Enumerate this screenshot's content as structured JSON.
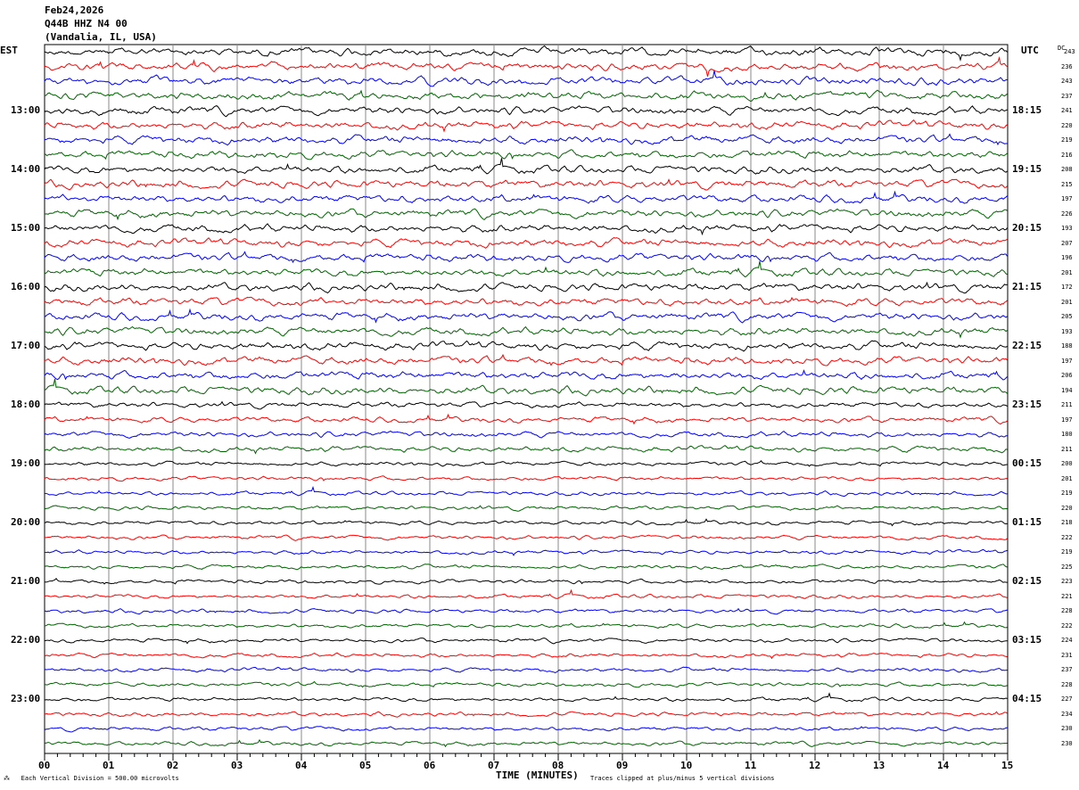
{
  "header": {
    "date": "Feb24,2026",
    "station": "Q44B HHZ N4 00",
    "location": "(Vandalia, IL, USA)"
  },
  "left_axis_label": "EST",
  "right_axis_label": "UTC",
  "dc_label": "DC",
  "chart_data": {
    "type": "line",
    "xlabel": "TIME (MINUTES)",
    "xlim": [
      0,
      15
    ],
    "x_ticks": [
      "00",
      "01",
      "02",
      "03",
      "04",
      "05",
      "06",
      "07",
      "08",
      "09",
      "10",
      "11",
      "12",
      "13",
      "14",
      "15"
    ],
    "left_hour_labels": [
      "13:00",
      "14:00",
      "15:00",
      "16:00",
      "17:00",
      "18:00",
      "19:00",
      "20:00",
      "21:00",
      "22:00",
      "23:00"
    ],
    "right_hour_labels": [
      "18:15",
      "19:15",
      "20:15",
      "21:15",
      "22:15",
      "23:15",
      "00:15",
      "01:15",
      "02:15",
      "03:15",
      "04:15"
    ],
    "trace_colors": [
      "#000000",
      "#ff0000",
      "#0000ff",
      "#006400"
    ],
    "dc_values": [
      243,
      236,
      243,
      237,
      241,
      220,
      219,
      216,
      208,
      215,
      197,
      226,
      193,
      207,
      196,
      201,
      172,
      201,
      205,
      193,
      188,
      197,
      206,
      194,
      211,
      197,
      180,
      211,
      200,
      201,
      219,
      220,
      218,
      222,
      219,
      225,
      223,
      221,
      228,
      222,
      224,
      231,
      237,
      228,
      227,
      234,
      230,
      230
    ],
    "grid": true
  },
  "footer": {
    "scale": "Each Vertical Division =  500.00 microvolts",
    "clip": "Traces clipped at plus/minus 5 vertical divisions"
  }
}
